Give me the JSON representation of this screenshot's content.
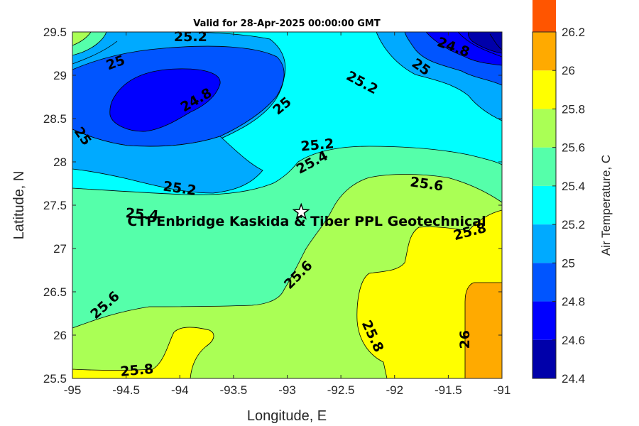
{
  "chart_data": {
    "type": "contour",
    "title": "Valid for 28-Apr-2025 00:00:00 GMT",
    "xlabel": "Longitude, E",
    "ylabel": "Latitude, N",
    "xlim": [
      -95,
      -91
    ],
    "ylim": [
      25.5,
      29.5
    ],
    "xticks": [
      "-95",
      "-94.5",
      "-94",
      "-93.5",
      "-93",
      "-92.5",
      "-92",
      "-91.5",
      "-91"
    ],
    "yticks": [
      "25.5",
      "26",
      "26.5",
      "27",
      "27.5",
      "28",
      "28.5",
      "29",
      "29.5"
    ],
    "colorbar": {
      "label": "Air Temperature, C",
      "range": [
        24.4,
        26.2
      ],
      "ticks": [
        "24.4",
        "24.6",
        "24.8",
        "25",
        "25.2",
        "25.4",
        "25.6",
        "25.8",
        "26",
        "26.2"
      ],
      "colors": [
        "#0000aa",
        "#0000ff",
        "#0055ff",
        "#00aaff",
        "#00ffff",
        "#55ffaa",
        "#aaff55",
        "#ffff00",
        "#ffaa00",
        "#ff5500"
      ]
    },
    "site": {
      "name": "CTPEnbridge  Kaskida & Tiber PPL Geotechnical",
      "lon": -92.87,
      "lat": 27.42,
      "marker": "star"
    },
    "contour_labels": [
      {
        "text": "25.2",
        "lon": -93.9,
        "lat": 29.45,
        "rotation": 0
      },
      {
        "text": "25",
        "lon": -94.6,
        "lat": 29.15,
        "rotation": -20
      },
      {
        "text": "24.8",
        "lon": -93.85,
        "lat": 28.72,
        "rotation": -30
      },
      {
        "text": "25",
        "lon": -93.05,
        "lat": 28.65,
        "rotation": -40
      },
      {
        "text": "25",
        "lon": -94.9,
        "lat": 28.3,
        "rotation": 55
      },
      {
        "text": "25.2",
        "lon": -92.3,
        "lat": 28.92,
        "rotation": 28
      },
      {
        "text": "24.8",
        "lon": -91.45,
        "lat": 29.33,
        "rotation": 20
      },
      {
        "text": "25",
        "lon": -91.75,
        "lat": 29.1,
        "rotation": 35
      },
      {
        "text": "25.2",
        "lon": -92.72,
        "lat": 28.2,
        "rotation": -5
      },
      {
        "text": "25.4",
        "lon": -92.77,
        "lat": 28.0,
        "rotation": -28
      },
      {
        "text": "25.2",
        "lon": -94.0,
        "lat": 27.7,
        "rotation": 8
      },
      {
        "text": "25.6",
        "lon": -91.7,
        "lat": 27.75,
        "rotation": 8
      },
      {
        "text": "25.4",
        "lon": -94.35,
        "lat": 27.4,
        "rotation": 5
      },
      {
        "text": "25.8",
        "lon": -91.3,
        "lat": 27.2,
        "rotation": -15
      },
      {
        "text": "25.6",
        "lon": -92.9,
        "lat": 26.7,
        "rotation": -45
      },
      {
        "text": "25.6",
        "lon": -94.7,
        "lat": 26.35,
        "rotation": -42
      },
      {
        "text": "25.8",
        "lon": -92.2,
        "lat": 25.99,
        "rotation": 65
      },
      {
        "text": "26",
        "lon": -91.35,
        "lat": 25.95,
        "rotation": -90
      },
      {
        "text": "25.8",
        "lon": -94.4,
        "lat": 25.6,
        "rotation": -5
      }
    ]
  }
}
